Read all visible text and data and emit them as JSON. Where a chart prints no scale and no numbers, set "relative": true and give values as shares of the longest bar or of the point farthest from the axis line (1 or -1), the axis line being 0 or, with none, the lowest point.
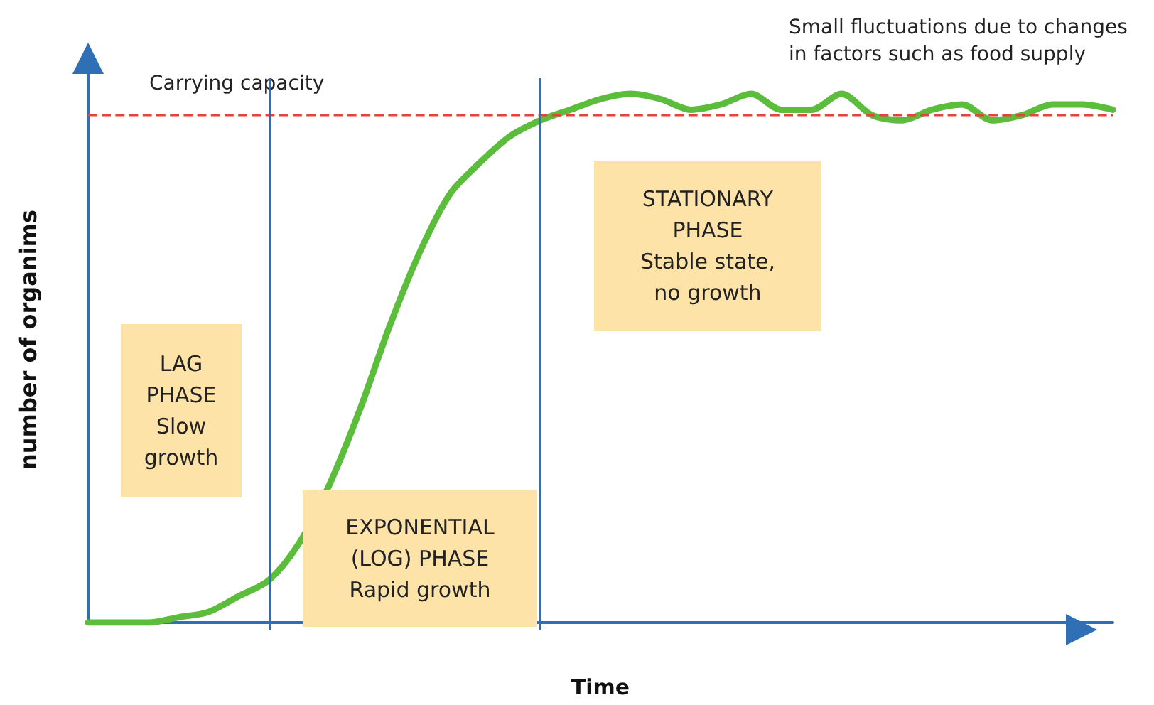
{
  "chart_data": {
    "type": "line",
    "relative": true,
    "xlabel": "Time",
    "ylabel": "number of organims",
    "categories": [
      null,
      null,
      null,
      null,
      null,
      null,
      null,
      null,
      null,
      null,
      null,
      null,
      null,
      null,
      null,
      null,
      null,
      null,
      null,
      null,
      null,
      null,
      null,
      null,
      null,
      null,
      null,
      null,
      null,
      null,
      null,
      null,
      null,
      null,
      null
    ],
    "series": [
      {
        "color": "#5cbd3c",
        "values": [
          0,
          0,
          0,
          0.01,
          0.02,
          0.05,
          0.08,
          0.15,
          0.26,
          0.4,
          0.56,
          0.7,
          0.81,
          0.87,
          0.92,
          0.95,
          0.97,
          0.99,
          1,
          0.99,
          0.97,
          0.98,
          1,
          0.97,
          0.97,
          1,
          0.96,
          0.95,
          0.97,
          0.98,
          0.95,
          0.96,
          0.98,
          0.98,
          0.97
        ]
      }
    ],
    "ref_lines": [
      {
        "axis": "y",
        "value": 0.96,
        "label": "Carrying capacity",
        "color": "#e8403a",
        "line_style": "dashed"
      }
    ],
    "annotations": [
      "LAG\nPHASE\nSlow\ngrowth",
      "EXPONENTIAL\n(LOG) PHASE\nRapid growth",
      "STATIONARY\nPHASE\nStable state,\nno growth",
      "Small fluctuations due to changes\nin factors such as food supply"
    ],
    "grid": false,
    "marker": "none",
    "line_style": "solid"
  }
}
